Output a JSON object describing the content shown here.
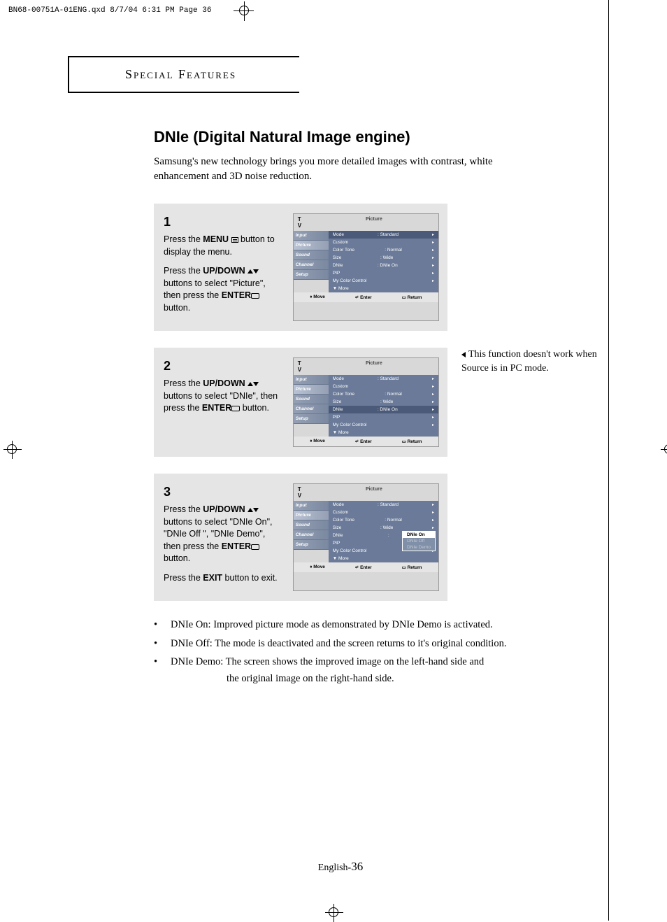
{
  "header": {
    "text": "BN68-00751A-01ENG.qxd  8/7/04 6:31 PM  Page 36"
  },
  "section_label": "Special Features",
  "title": "DNIe (Digital Natural Image engine)",
  "subtitle": "Samsung's new technology brings you more detailed images with contrast, white enhancement and 3D noise reduction.",
  "side_note": "This function doesn't work when Source is in PC mode.",
  "steps": [
    {
      "num": "1",
      "paras": [
        {
          "pre": "Press the ",
          "b1": "MENU",
          "icon": "menu",
          "post": " button to display the menu."
        },
        {
          "pre": "Press the ",
          "b1": "UP/DOWN",
          "icon": "updown",
          "mid": " buttons to select \"Picture\", then press the ",
          "b2": "ENTER",
          "icon2": "enter",
          "post": " button."
        }
      ],
      "highlight": 0
    },
    {
      "num": "2",
      "paras": [
        {
          "pre": "Press the ",
          "b1": "UP/DOWN",
          "icon": "updown",
          "mid": " buttons to select \"DNIe\", then press the ",
          "b2": "ENTER",
          "icon2": "enter",
          "post": " button."
        }
      ],
      "highlight": 4
    },
    {
      "num": "3",
      "paras": [
        {
          "pre": "Press the ",
          "b1": "UP/DOWN",
          "icon": "updown",
          "mid": " buttons to select \"DNIe On\", \"DNIe Off \", \"DNIe Demo\", then press the ",
          "b2": "ENTER",
          "icon2": "enter",
          "post": " button."
        },
        {
          "pre": "Press the ",
          "b1": "EXIT",
          "post": " button to exit."
        }
      ],
      "highlight": 4,
      "popup": true
    }
  ],
  "tv": {
    "tv_label": "T V",
    "panel_title": "Picture",
    "sidebar": [
      "Input",
      "Picture",
      "Sound",
      "Channel",
      "Setup"
    ],
    "menu_rows": [
      {
        "l": "Mode",
        "c": ": ",
        "r": "Standard"
      },
      {
        "l": "Custom",
        "c": "",
        "r": ""
      },
      {
        "l": "Color Tone",
        "c": ": ",
        "r": "Normal"
      },
      {
        "l": "Size",
        "c": ": ",
        "r": "Wide"
      },
      {
        "l": "DNIe",
        "c": ": ",
        "r": "DNIe On"
      },
      {
        "l": "PIP",
        "c": "",
        "r": ""
      },
      {
        "l": "My Color Control",
        "c": "",
        "r": ""
      },
      {
        "l": "▼ More",
        "c": "",
        "r": "",
        "noar": true
      }
    ],
    "footer": [
      "♦ Move",
      "↵ Enter",
      "▭ Return"
    ],
    "popup_items": [
      "DNIe On",
      "DNIe Off",
      "DNIe Demo"
    ]
  },
  "bullets": [
    "DNIe On: Improved picture mode as demonstrated by DNIe Demo is activated.",
    "DNIe Off: The mode is deactivated and the screen returns to it's original condition.",
    "DNIe Demo: The screen shows the improved image on the left-hand side and"
  ],
  "demo_line2": "the original image on the right-hand side.",
  "page_num_prefix": "English-",
  "page_num": "36"
}
